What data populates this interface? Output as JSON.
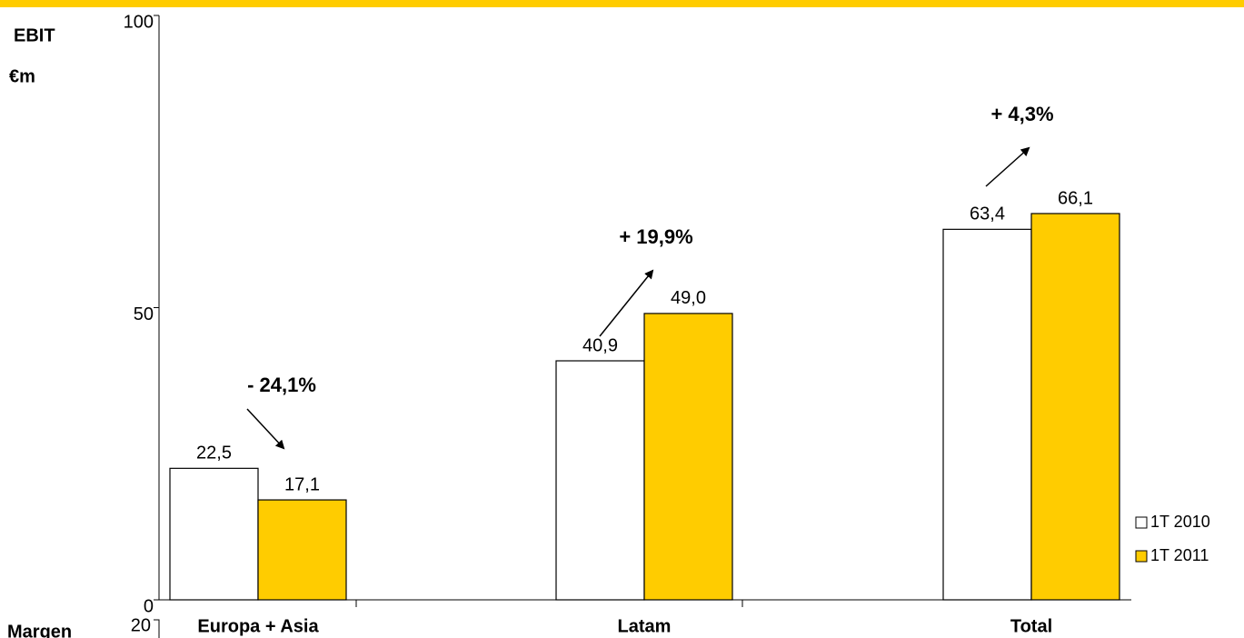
{
  "chart_data": {
    "type": "bar",
    "y_label_top": "EBIT",
    "y_label_unit": "€m",
    "categories": [
      "Europa + Asia",
      "Latam",
      "Total"
    ],
    "series": [
      {
        "name": "1T 2010",
        "color": "#ffffff",
        "values": [
          22.5,
          40.9,
          63.4
        ],
        "value_labels": [
          "22,5",
          "40,9",
          "63,4"
        ]
      },
      {
        "name": "1T 2011",
        "color": "#ffcc00",
        "values": [
          17.1,
          49.0,
          66.1
        ],
        "value_labels": [
          "17,1",
          "49,0",
          "66,1"
        ]
      }
    ],
    "annotations": [
      "- 24,1%",
      "+ 19,9%",
      "+ 4,3%"
    ],
    "lower_chart": {
      "y_label": "Margen",
      "yticks": [
        20
      ]
    },
    "ylim": [
      0,
      100
    ],
    "yticks": [
      0,
      50,
      100
    ],
    "legend": "right"
  }
}
